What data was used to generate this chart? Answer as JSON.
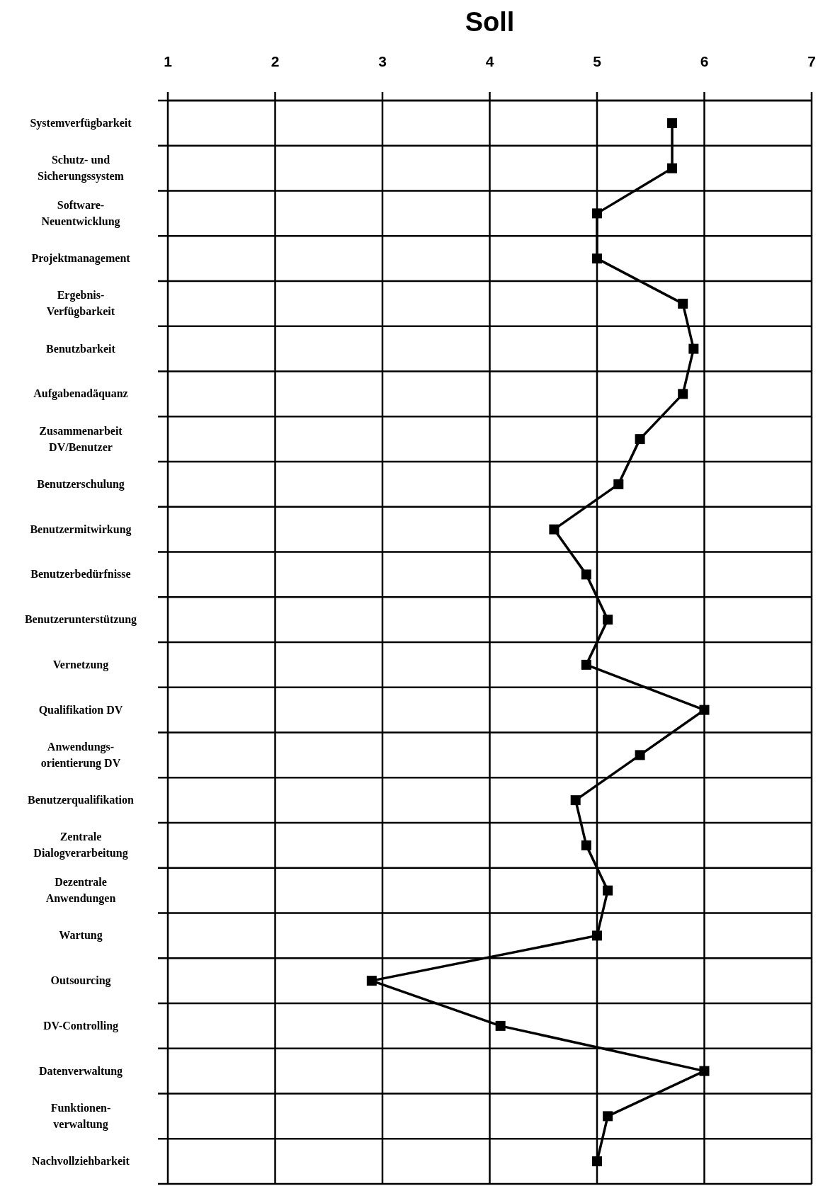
{
  "chart_data": {
    "type": "line",
    "orientation": "horizontal",
    "title": "Soll",
    "categories": [
      "Systemverfügbarkeit",
      "Schutz- und\nSicherungssystem",
      "Software-\nNeuentwicklung",
      "Projektmanagement",
      "Ergebnis-\nVerfügbarkeit",
      "Benutzbarkeit",
      "Aufgabenadäquanz",
      "Zusammenarbeit\nDV/Benutzer",
      "Benutzerschulung",
      "Benutzermitwirkung",
      "Benutzerbedürfnisse",
      "Benutzerunterstützung",
      "Vernetzung",
      "Qualifikation DV",
      "Anwendungs-\norientierung DV",
      "Benutzerqualifikation",
      "Zentrale\nDialogverarbeitung",
      "Dezentrale\nAnwendungen",
      "Wartung",
      "Outsourcing",
      "DV-Controlling",
      "Datenverwaltung",
      "Funktionen-\nverwaltung",
      "Nachvollziehbarkeit"
    ],
    "series": [
      {
        "color": "#000000",
        "values": [
          5.7,
          5.7,
          5.0,
          5.0,
          5.8,
          5.9,
          5.8,
          5.4,
          5.2,
          4.6,
          4.9,
          5.1,
          4.9,
          6.0,
          5.4,
          4.8,
          4.9,
          5.1,
          5.0,
          2.9,
          4.1,
          6.0,
          5.1,
          5.0
        ]
      }
    ],
    "xlim": [
      1,
      7
    ],
    "xticks": [
      1,
      2,
      3,
      4,
      5,
      6,
      7
    ],
    "grid": true,
    "marker": "square",
    "line_style": "solid"
  }
}
